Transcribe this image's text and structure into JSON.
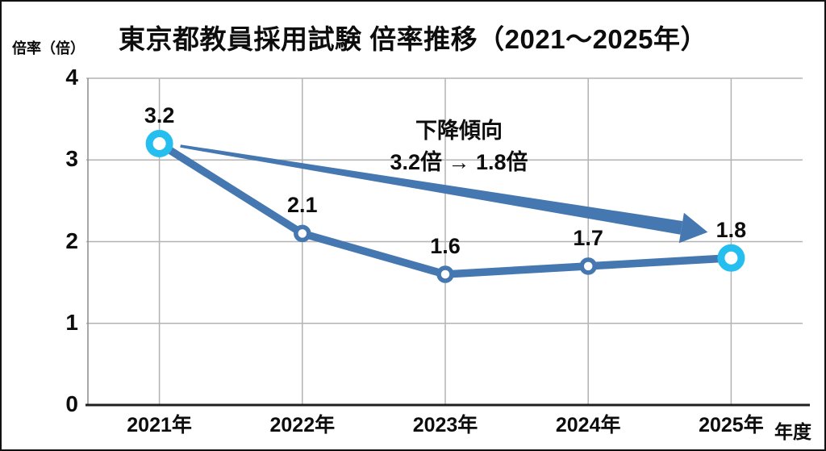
{
  "title": "東京都教員採用試験 倍率推移（2021〜2025年）",
  "y_axis_unit": "倍率（倍）",
  "x_axis_unit": "年度",
  "annotation": {
    "line1": "下降傾向",
    "line2": "3.2倍 → 1.8倍"
  },
  "colors": {
    "series": "#4577B0",
    "highlight": "#25BFEF",
    "marker_fill": "#ffffff",
    "grid": "#b3b3b3",
    "plot_border": "#8c8c8c",
    "axis": "#1f1f1f",
    "text": "#0d0d0d"
  },
  "chart_data": {
    "type": "line",
    "title": "東京都教員採用試験 倍率推移（2021〜2025年）",
    "categories": [
      "2021年",
      "2022年",
      "2023年",
      "2024年",
      "2025年"
    ],
    "values": [
      3.2,
      2.1,
      1.6,
      1.7,
      1.8
    ],
    "data_labels": [
      "3.2",
      "2.1",
      "1.6",
      "1.7",
      "1.8"
    ],
    "highlighted_points": [
      0,
      4
    ],
    "series_name": "倍率",
    "xlabel": "年度",
    "ylabel": "倍率（倍）",
    "ylim": [
      0,
      4
    ],
    "yticks": [
      0,
      1,
      2,
      3,
      4
    ],
    "grid": true,
    "legend": false,
    "annotation_text": "下降傾向 3.2倍 → 1.8倍",
    "annotation_arrow": {
      "from_value": 3.2,
      "from_category": "2021年",
      "to_value": 1.8,
      "to_category": "2025年"
    }
  }
}
